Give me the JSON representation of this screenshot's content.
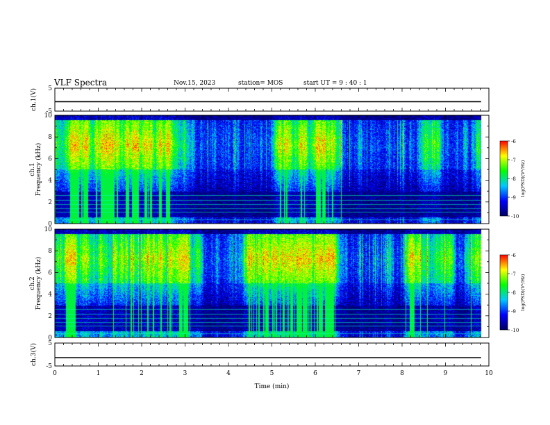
{
  "header": {
    "title": "VLF Spectra",
    "date": "Nov.15, 2023",
    "station": "station= MOS",
    "start": "start UT =  9 : 40 : 1"
  },
  "chart_data": [
    {
      "type": "line",
      "title": "",
      "ylabel": "ch.1(V)",
      "xlim": [
        0,
        10
      ],
      "ylim": [
        -5,
        5
      ],
      "yticks": [
        "5",
        "-5"
      ],
      "series": [
        {
          "values": [
            0,
            0
          ]
        }
      ],
      "x": [
        0,
        9.82
      ]
    },
    {
      "type": "heatmap",
      "ylabel": "ch.1 Frequency (kHz)",
      "xlim": [
        0,
        10
      ],
      "ylim": [
        0,
        10
      ],
      "yticks": [
        "0",
        "2",
        "4",
        "6",
        "8",
        "10"
      ],
      "colorbar": {
        "label": "log(PSD)(V²/Hz)",
        "range": [
          -10,
          -6
        ],
        "ticks": [
          "-6",
          "-7",
          "-8",
          "-9",
          "-10"
        ]
      }
    },
    {
      "type": "heatmap",
      "ylabel": "ch.2 Frequency (kHz)",
      "xlim": [
        0,
        10
      ],
      "ylim": [
        0,
        10
      ],
      "yticks": [
        "0",
        "2",
        "4",
        "6",
        "8",
        "10"
      ],
      "colorbar": {
        "label": "log(PSD)(V²/Hz)",
        "range": [
          -10,
          -6
        ],
        "ticks": [
          "-6",
          "-7",
          "-8",
          "-9",
          "-10"
        ]
      }
    },
    {
      "type": "line",
      "ylabel": "ch.3(V)",
      "xlim": [
        0,
        10
      ],
      "ylim": [
        -5,
        5
      ],
      "yticks": [
        "5",
        "-5"
      ],
      "series": [
        {
          "values": [
            0,
            0
          ]
        }
      ],
      "x": [
        0,
        9.82
      ]
    }
  ],
  "xaxis": {
    "label": "Time (min)",
    "ticks": [
      "0",
      "1",
      "2",
      "3",
      "4",
      "5",
      "6",
      "7",
      "8",
      "9",
      "10"
    ]
  },
  "colors": {
    "colormap": [
      "#000060",
      "#0000ff",
      "#00c8ff",
      "#00ff00",
      "#ffff00",
      "#ff0000"
    ]
  }
}
